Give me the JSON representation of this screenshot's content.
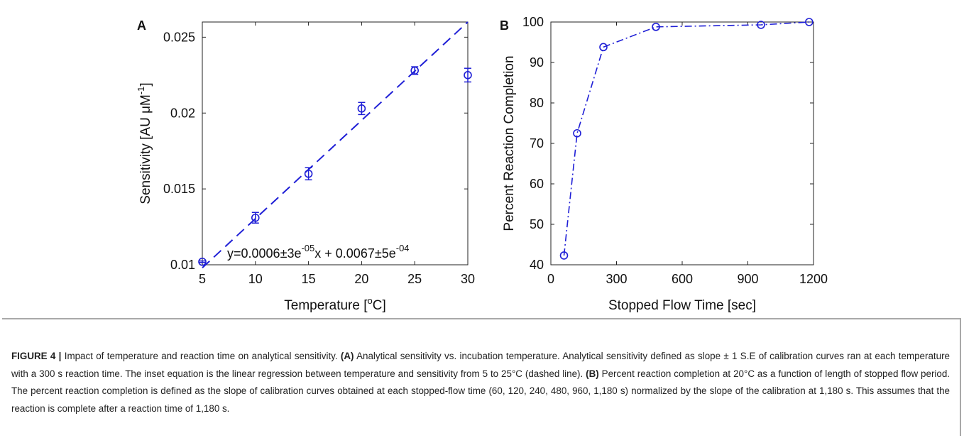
{
  "chart_data": [
    {
      "panel": "A",
      "type": "scatter",
      "xlabel": "Temperature [°C]",
      "ylabel": "Sensitivity [AU μM⁻¹]",
      "x": [
        5,
        10,
        15,
        20,
        25,
        30
      ],
      "y": [
        0.0102,
        0.0131,
        0.016,
        0.0203,
        0.0228,
        0.0225
      ],
      "yerr": [
        5e-05,
        0.00035,
        0.0004,
        0.0004,
        0.00025,
        0.00045
      ],
      "xlim": [
        5,
        30
      ],
      "ylim": [
        0.01,
        0.026
      ],
      "xticks": [
        "5",
        "10",
        "15",
        "20",
        "25",
        "30"
      ],
      "yticks": [
        "0.01",
        "0.015",
        "0.02",
        "0.025"
      ],
      "fit": {
        "style": "dashed",
        "x": [
          5,
          30
        ],
        "y": [
          0.0098,
          0.026
        ]
      },
      "annotation": {
        "base": "y=0.0006±3e",
        "sup1": "-05",
        "mid": "x + 0.0067±5e",
        "sup2": "-04"
      },
      "color": "#1f1fd6",
      "grid": false
    },
    {
      "panel": "B",
      "type": "line",
      "xlabel": "Stopped Flow Time [sec]",
      "ylabel": "Percent Reaction Completion",
      "x": [
        60,
        120,
        240,
        480,
        960,
        1180
      ],
      "y": [
        42.3,
        72.5,
        93.8,
        98.8,
        99.3,
        100
      ],
      "xlim": [
        0,
        1200
      ],
      "ylim": [
        40,
        100
      ],
      "xticks": [
        "0",
        "300",
        "600",
        "900",
        "1200"
      ],
      "yticks": [
        "40",
        "50",
        "60",
        "70",
        "80",
        "90",
        "100"
      ],
      "line_style": "dash-dot",
      "marker": "circle",
      "color": "#1f1fd6",
      "grid": false
    }
  ],
  "caption": {
    "label": "FIGURE 4 |",
    "intro": " Impact of temperature and reaction time on analytical sensitivity. ",
    "a_ref": "(A)",
    "a_text": " Analytical sensitivity vs. incubation temperature. Analytical sensitivity defined as slope ± 1 S.E of calibration curves ran at each temperature with a 300 s reaction time. The inset equation is the linear regression between temperature and sensitivity from 5 to 25°C (dashed line). ",
    "b_ref": "(B)",
    "b_text": " Percent reaction completion at 20°C as a function of length of stopped flow period. The percent reaction completion is defined as the slope of calibration curves obtained at each stopped-flow time (60, 120, 240, 480, 960, 1,180 s) normalized by the slope of the calibration at 1,180 s. This assumes that the reaction is complete after a reaction time of 1,180 s."
  }
}
